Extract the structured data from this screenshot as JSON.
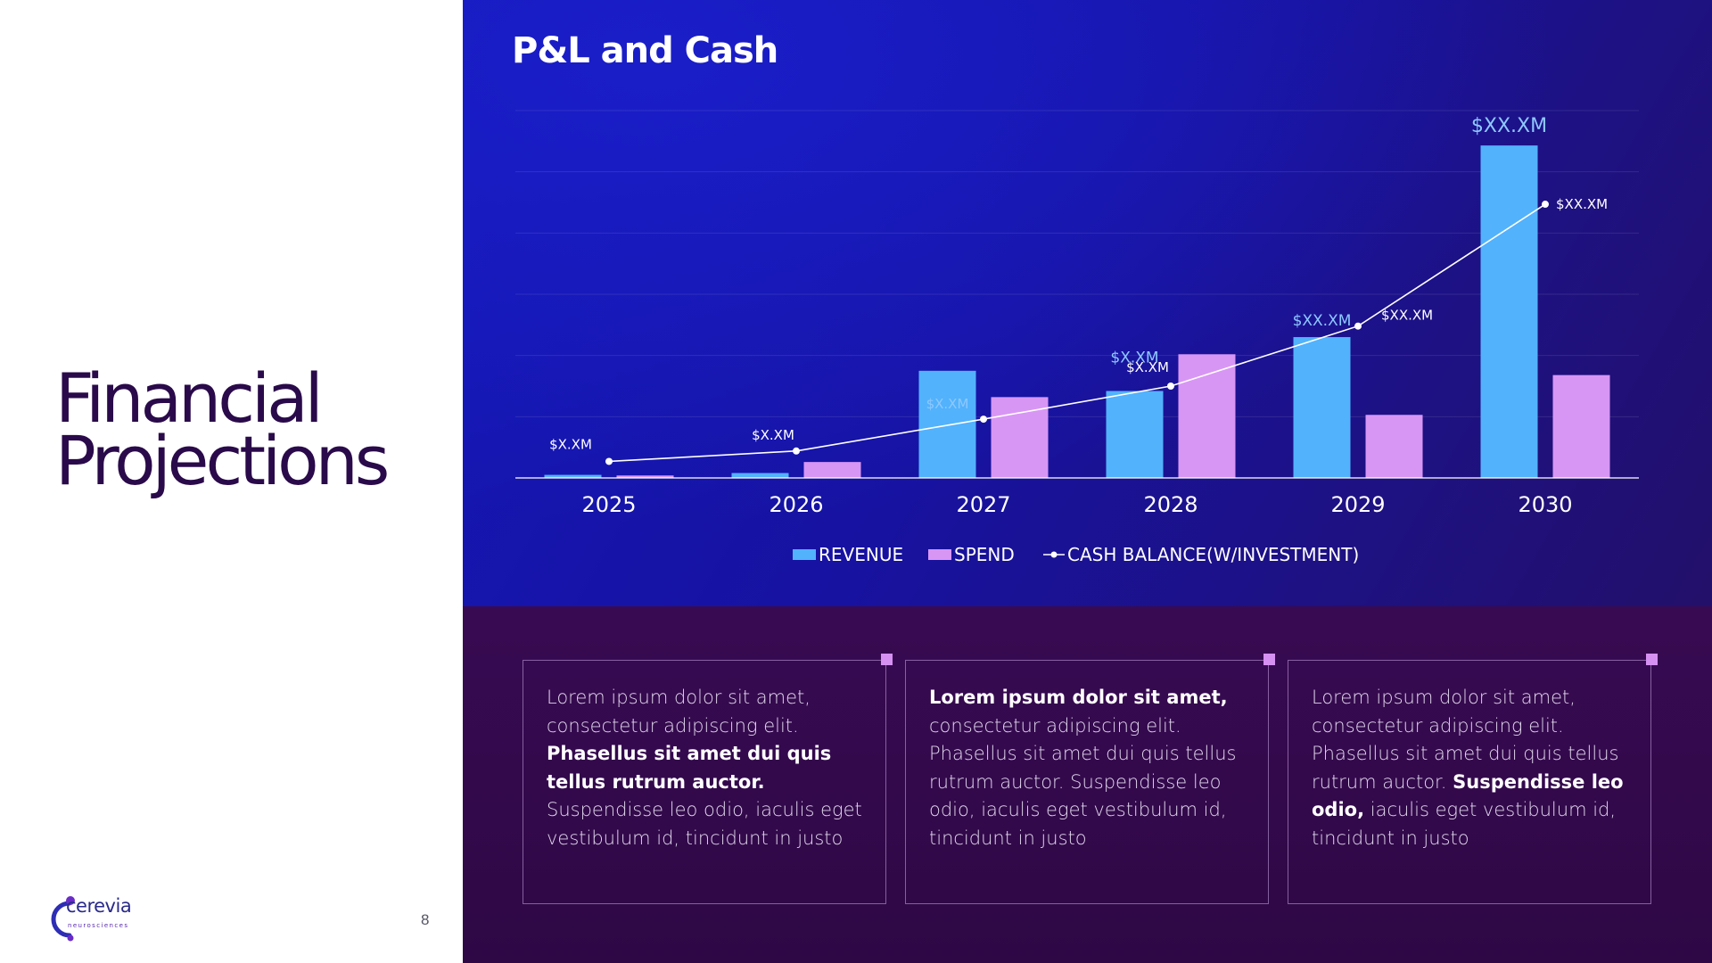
{
  "slide": {
    "title_line1": "Financial",
    "title_line2": "Projections",
    "page_number": "8"
  },
  "logo": {
    "name": "cerevia",
    "sub": "neurosciences"
  },
  "chart_title": "P&L and Cash",
  "colors": {
    "revenue": "#52b2fc",
    "spend": "#d896f4",
    "cash_line": "#ffffff",
    "revenue_label": "#8ec8ff",
    "card_marker": "#d690f2"
  },
  "chart_data": {
    "type": "bar",
    "categories": [
      "2025",
      "2026",
      "2027",
      "2028",
      "2029",
      "2030"
    ],
    "ylim": [
      0,
      6
    ],
    "grid": true,
    "legend_position": "bottom",
    "series": [
      {
        "name": "REVENUE",
        "type": "bar",
        "values": [
          0.05,
          0.08,
          1.75,
          1.42,
          2.3,
          5.43
        ]
      },
      {
        "name": "SPEND",
        "type": "bar",
        "values": [
          0.04,
          0.26,
          1.32,
          2.02,
          1.03,
          1.68
        ]
      },
      {
        "name": "CASH BALANCE(W/INVESTMENT)",
        "type": "line",
        "values": [
          0.27,
          0.44,
          0.96,
          1.5,
          2.48,
          4.47
        ]
      }
    ],
    "revenue_labels": [
      "",
      "",
      "$X.XM",
      "$X.XM",
      "$XX.XM",
      "$XX.XM"
    ],
    "cash_labels": [
      "$X.XM",
      "$X.XM",
      "",
      "$X.XM",
      "$XX.XM",
      "$XX.XM"
    ]
  },
  "cards": [
    {
      "segments": [
        {
          "text": "Lorem ipsum dolor sit amet, consectetur adipiscing elit. ",
          "bold": false
        },
        {
          "text": "Phasellus sit amet dui quis tellus rutrum auctor.",
          "bold": true
        },
        {
          "text": " Suspendisse leo odio, iaculis eget vestibulum id, tincidunt in justo",
          "bold": false
        }
      ]
    },
    {
      "segments": [
        {
          "text": "Lorem ipsum dolor sit amet,",
          "bold": true
        },
        {
          "text": " consectetur adipiscing elit. Phasellus sit amet dui quis tellus rutrum auctor. Suspendisse leo odio, iaculis eget vestibulum id, tincidunt in justo",
          "bold": false
        }
      ]
    },
    {
      "segments": [
        {
          "text": "Lorem ipsum dolor sit amet, consectetur adipiscing elit. Phasellus sit amet dui quis tellus rutrum auctor. ",
          "bold": false
        },
        {
          "text": "Suspendisse leo odio,",
          "bold": true
        },
        {
          "text": " iaculis eget vestibulum id, tincidunt in justo",
          "bold": false
        }
      ]
    }
  ]
}
